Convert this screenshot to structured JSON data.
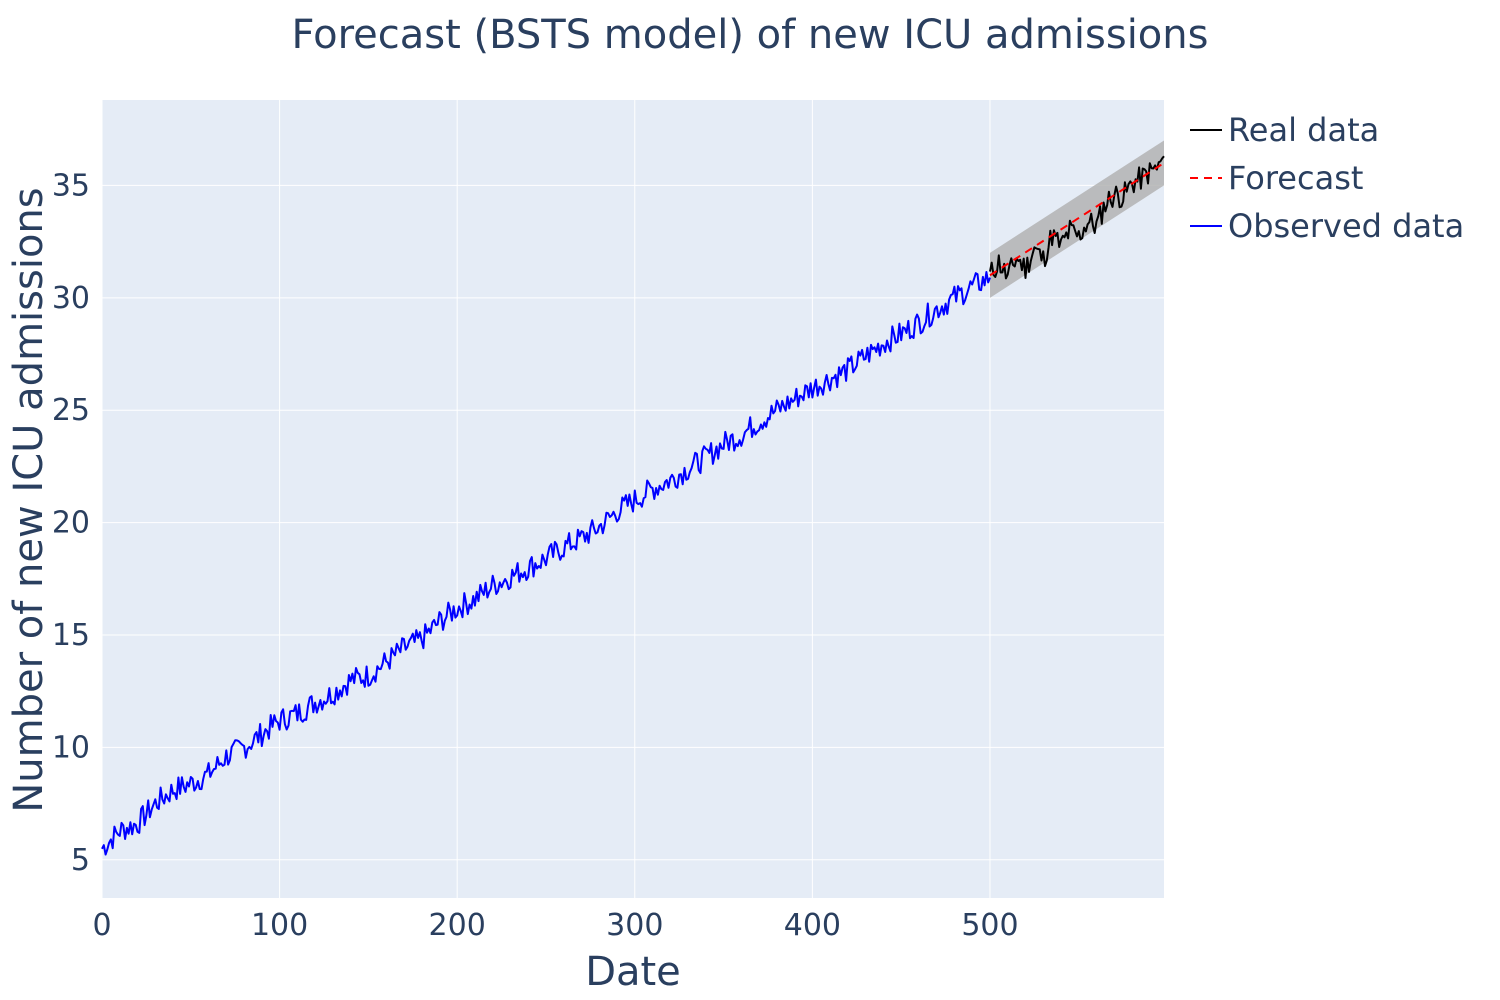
{
  "chart_data": {
    "type": "line",
    "title": "Forecast (BSTS model) of new ICU admissions",
    "xlabel": "Date",
    "ylabel": "Number of new ICU admissions",
    "xlim": [
      0,
      598
    ],
    "ylim": [
      3.3,
      38.8
    ],
    "x_ticks": [
      0,
      100,
      200,
      300,
      400,
      500
    ],
    "y_ticks": [
      5,
      10,
      15,
      20,
      25,
      30,
      35
    ],
    "grid": true,
    "legend_position": "top-right",
    "colors": {
      "plot_background": "#e5ecf6",
      "grid": "#ffffff",
      "text": "#2a3f5f",
      "observed": "#0000ff",
      "real": "#000000",
      "forecast": "#ff0000",
      "band": "#b3b3b3"
    },
    "series": [
      {
        "name": "Real data",
        "style": "solid",
        "x": [
          500,
          505,
          510,
          515,
          520,
          525,
          530,
          535,
          540,
          545,
          550,
          555,
          560,
          565,
          570,
          575,
          580,
          585,
          590,
          595,
          598
        ],
        "y": [
          31.0,
          31.6,
          30.9,
          31.8,
          31.3,
          32.2,
          31.7,
          32.8,
          32.3,
          33.0,
          32.7,
          33.4,
          33.2,
          34.2,
          34.6,
          34.5,
          35.1,
          35.3,
          35.6,
          35.8,
          36.3
        ]
      },
      {
        "name": "Forecast",
        "style": "dashed",
        "x": [
          500,
          598
        ],
        "y": [
          31.0,
          36.0
        ]
      },
      {
        "name": "Observed data",
        "style": "solid",
        "x": [
          0,
          10,
          20,
          30,
          40,
          50,
          60,
          70,
          80,
          90,
          100,
          110,
          120,
          130,
          140,
          150,
          160,
          170,
          180,
          190,
          200,
          210,
          220,
          230,
          240,
          250,
          260,
          270,
          280,
          290,
          300,
          310,
          320,
          330,
          340,
          350,
          360,
          370,
          380,
          390,
          400,
          410,
          420,
          430,
          440,
          450,
          460,
          470,
          480,
          490,
          500
        ],
        "y": [
          5.5,
          6.3,
          6.6,
          7.5,
          8.1,
          8.4,
          8.8,
          9.6,
          10.0,
          10.6,
          11.2,
          11.5,
          12.0,
          12.4,
          13.0,
          13.2,
          13.8,
          14.4,
          14.8,
          15.6,
          16.2,
          16.6,
          17.2,
          17.6,
          18.0,
          18.4,
          18.9,
          19.3,
          19.8,
          20.5,
          21.0,
          21.5,
          21.9,
          22.4,
          22.9,
          23.5,
          23.9,
          24.5,
          25.0,
          25.5,
          26.0,
          26.4,
          26.8,
          27.4,
          28.0,
          28.4,
          28.9,
          29.5,
          30.0,
          30.5,
          30.9
        ]
      }
    ],
    "band": {
      "name": "Forecast interval",
      "x": [
        500,
        598
      ],
      "lower": [
        30.0,
        35.0
      ],
      "upper": [
        32.0,
        37.0
      ]
    }
  }
}
